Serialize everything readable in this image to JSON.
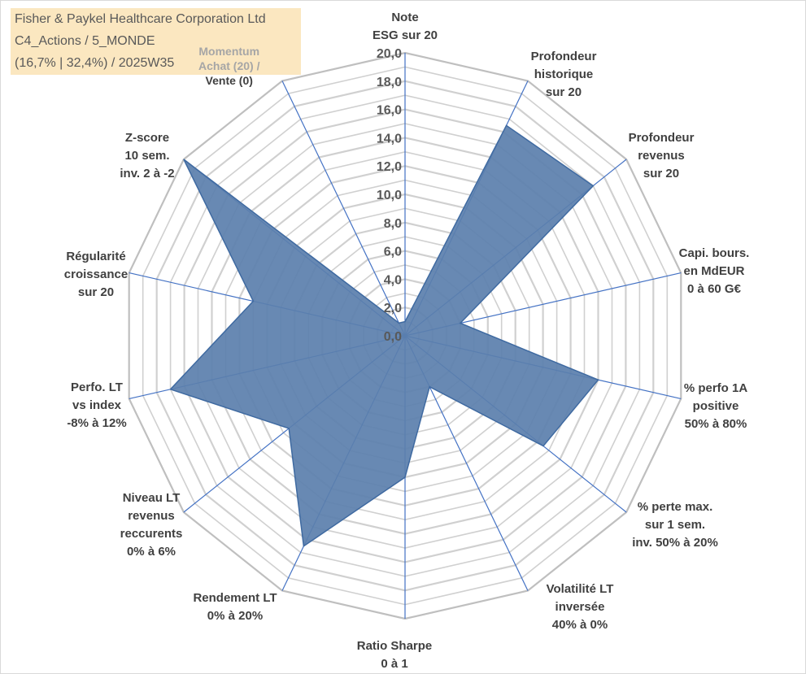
{
  "title": {
    "line1": "Fisher & Paykel Healthcare Corporation Ltd",
    "line2": "C4_Actions / 5_MONDE",
    "line3": "(16,7% | 32,4%) / 2025W35"
  },
  "chart_data": {
    "type": "radar",
    "rlim": [
      0,
      20
    ],
    "tick_labels": [
      "0,0",
      "2,0",
      "4,0",
      "6,0",
      "8,0",
      "10,0",
      "12,0",
      "14,0",
      "16,0",
      "18,0",
      "20,0"
    ],
    "axes": [
      {
        "label": [
          "Note",
          "ESG sur 20"
        ],
        "value": 1.0
      },
      {
        "label": [
          "Profondeur",
          "historique",
          "sur 20"
        ],
        "value": 16.5
      },
      {
        "label": [
          "Profondeur",
          "revenus",
          "sur 20"
        ],
        "value": 17.0
      },
      {
        "label": [
          "Capi. bours.",
          "en MdEUR",
          "0 à 60 G€"
        ],
        "value": 4.0
      },
      {
        "label": [
          "% perfo 1A",
          "positive",
          "50% à 80%"
        ],
        "value": 14.0
      },
      {
        "label": [
          "% perte max.",
          "sur 1 sem.",
          "inv. 50% à 20%"
        ],
        "value": 12.5
      },
      {
        "label": [
          "Volatilité LT",
          "inversée",
          "40% à 0%"
        ],
        "value": 4.0
      },
      {
        "label": [
          "Ratio Sharpe",
          "0 à 1"
        ],
        "value": 10.0
      },
      {
        "label": [
          "Rendement LT",
          "0% à 20%"
        ],
        "value": 16.5
      },
      {
        "label": [
          "Niveau LT",
          "revenus",
          "reccurents",
          "0% à 6%"
        ],
        "value": 10.5
      },
      {
        "label": [
          "Perfo. LT",
          "vs index",
          "-8% à 12%"
        ],
        "value": 17.0
      },
      {
        "label": [
          "Régularité",
          "croissance",
          "sur 20"
        ],
        "value": 11.0
      },
      {
        "label": [
          "Z-score",
          "10 sem.",
          "inv. 2 à -2"
        ],
        "value": 20.0
      },
      {
        "label": [
          "Momentum",
          "Achat (20) /",
          "Vente (0)"
        ],
        "value": 1.0
      }
    ],
    "colors": {
      "fill": "#5b7fad",
      "stroke": "#3f6aa1",
      "spoke": "#4472c4",
      "grid": "#d0d0d0",
      "outer_grid": "#bfbfbf",
      "title_box": "#fbe7c0"
    }
  }
}
